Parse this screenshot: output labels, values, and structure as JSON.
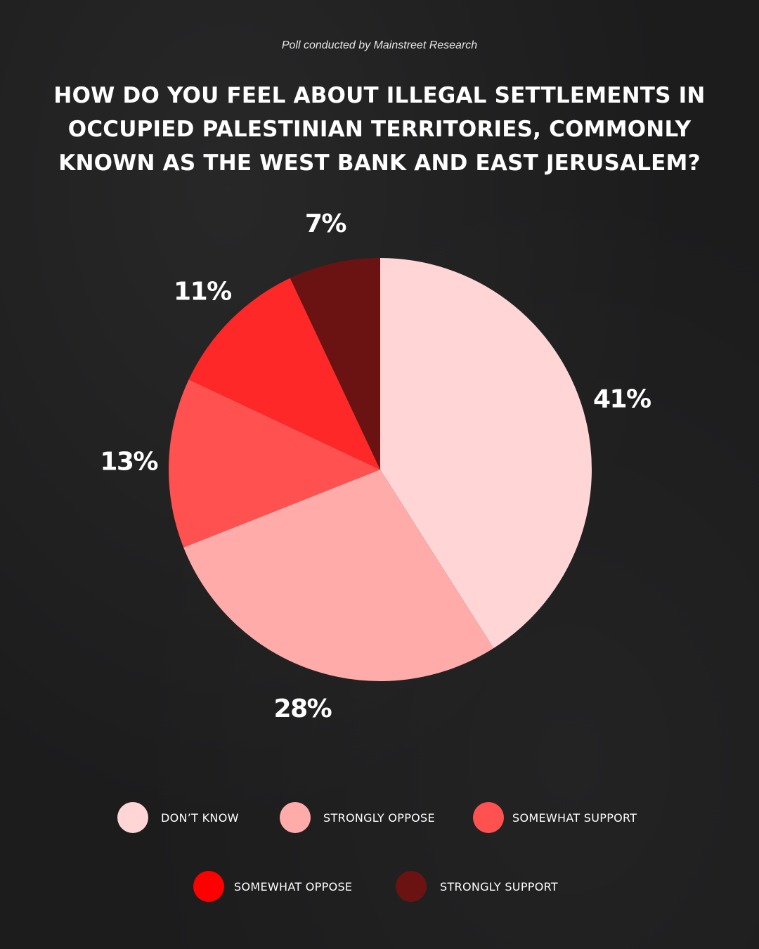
{
  "source_note": "Poll conducted by Mainstreet Research",
  "title": "HOW DO YOU FEEL ABOUT ILLEGAL SETTLEMENTS IN OCCUPIED PALESTINIAN TERRITORIES, COMMONLY KNOWN AS THE WEST BANK AND EAST JERUSALEM?",
  "chart_data": {
    "type": "pie",
    "categories": [
      "DON’T KNOW",
      "STRONGLY OPPOSE",
      "SOMEWHAT SUPPORT",
      "SOMEWHAT OPPOSE",
      "STRONGLY SUPPORT"
    ],
    "values": [
      41,
      28,
      13,
      11,
      7
    ],
    "value_labels": [
      "41%",
      "28%",
      "13%",
      "11%",
      "7%"
    ],
    "colors": [
      "#ffd6d5",
      "#ffabaa",
      "#ff5150",
      "#ff2828",
      "#6b1313"
    ],
    "start_angle_deg": 0,
    "direction": "clockwise",
    "legend_position": "bottom"
  },
  "legend": {
    "items": [
      {
        "label": "DON’T KNOW",
        "color": "#ffd6d5"
      },
      {
        "label": "STRONGLY OPPOSE",
        "color": "#ffabaa"
      },
      {
        "label": "SOMEWHAT SUPPORT",
        "color": "#ff5150"
      },
      {
        "label": "SOMEWHAT OPPOSE",
        "color": "#ff0000"
      },
      {
        "label": "STRONGLY SUPPORT",
        "color": "#6b1313"
      }
    ]
  }
}
